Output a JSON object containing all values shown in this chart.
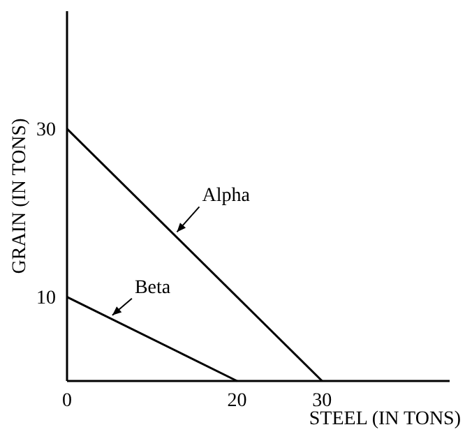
{
  "chart_data": {
    "type": "line",
    "xlabel": "STEEL (IN TONS)",
    "ylabel": "GRAIN (IN TONS)",
    "xlim": [
      0,
      45
    ],
    "ylim": [
      0,
      44
    ],
    "xticks": [
      0,
      20,
      30
    ],
    "yticks": [
      10,
      30
    ],
    "grid": false,
    "legend": false,
    "marker": "none",
    "line_style": "solid",
    "series": [
      {
        "name": "Alpha",
        "color": "#000000",
        "x": [
          0,
          30
        ],
        "values": [
          30,
          0
        ]
      },
      {
        "name": "Beta",
        "color": "#000000",
        "x": [
          0,
          20
        ],
        "values": [
          10,
          0
        ]
      }
    ]
  }
}
